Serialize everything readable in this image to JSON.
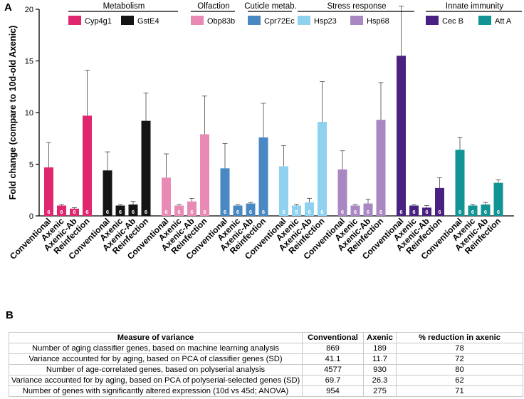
{
  "panel_a_letter": "A",
  "panel_b_letter": "B",
  "chart_data": {
    "type": "bar",
    "ylabel": "Fold change (compare to 10d-old Axenic)",
    "xlabel": "",
    "ylim": [
      0,
      20
    ],
    "yticks": [
      0,
      5,
      10,
      15,
      20
    ],
    "category_groups": [
      {
        "name": "Metabolism",
        "genes": [
          "Cyp4g1",
          "GstE4"
        ]
      },
      {
        "name": "Olfaction",
        "genes": [
          "Obp83b"
        ]
      },
      {
        "name": "Cuticle metab.",
        "genes": [
          "Cpr72Ec"
        ]
      },
      {
        "name": "Stress response",
        "genes": [
          "Hsp23",
          "Hsp68"
        ]
      },
      {
        "name": "Innate immunity",
        "genes": [
          "Cec B",
          "Att A"
        ]
      }
    ],
    "conditions": [
      "Conventional",
      "Axenic",
      "Axenic-Ab",
      "Reinfection"
    ],
    "series": [
      {
        "name": "Cyp4g1",
        "color": "#e0266e",
        "values": [
          4.7,
          1.0,
          0.7,
          9.7
        ],
        "errors": [
          2.4,
          0.1,
          0.1,
          4.4
        ],
        "n": [
          "6",
          "6",
          "6",
          "6"
        ]
      },
      {
        "name": "GstE4",
        "color": "#141414",
        "values": [
          4.4,
          1.0,
          1.1,
          9.2
        ],
        "errors": [
          1.8,
          0.1,
          0.3,
          2.7
        ],
        "n": [
          "6",
          "6",
          "6",
          "6"
        ]
      },
      {
        "name": "Obp83b",
        "color": "#e88ab4",
        "values": [
          3.7,
          1.0,
          1.4,
          7.9
        ],
        "errors": [
          2.3,
          0.1,
          0.3,
          3.7
        ],
        "n": [
          "6",
          "6",
          "6",
          "6"
        ]
      },
      {
        "name": "Cpr72Ec",
        "color": "#4a88c4",
        "values": [
          4.6,
          1.0,
          1.2,
          7.6
        ],
        "errors": [
          2.4,
          0.1,
          0.1,
          3.3
        ],
        "n": [
          "6",
          "6",
          "6",
          "6"
        ]
      },
      {
        "name": "Hsp23",
        "color": "#8fd2ef",
        "values": [
          4.8,
          1.0,
          1.3,
          9.1
        ],
        "errors": [
          2.0,
          0.1,
          0.4,
          3.9
        ],
        "n": [
          "5",
          "5",
          "6",
          "6"
        ]
      },
      {
        "name": "Hsp68",
        "color": "#a987c3",
        "values": [
          4.5,
          1.0,
          1.2,
          9.3
        ],
        "errors": [
          1.8,
          0.1,
          0.4,
          3.6
        ],
        "n": [
          "6",
          "6",
          "6",
          "6"
        ]
      },
      {
        "name": "Cec B",
        "color": "#4a2081",
        "values": [
          15.5,
          1.0,
          0.8,
          2.7
        ],
        "errors": [
          4.8,
          0.1,
          0.2,
          1.0
        ],
        "n": [
          "6",
          "6",
          "6",
          "6"
        ]
      },
      {
        "name": "Att A",
        "color": "#129494",
        "values": [
          6.4,
          1.0,
          1.1,
          3.2
        ],
        "errors": [
          1.2,
          0.1,
          0.2,
          0.3
        ],
        "n": [
          "6",
          "6",
          "6",
          "6"
        ]
      }
    ]
  },
  "variance_table": {
    "headers": [
      "Measure of variance",
      "Conventional",
      "Axenic",
      "% reduction in axenic"
    ],
    "rows": [
      [
        "Number of aging classifier genes, based on machine learning analysis",
        "869",
        "189",
        "78"
      ],
      [
        "Variance accounted for by aging, based on PCA of classifier genes (SD)",
        "41.1",
        "11.7",
        "72"
      ],
      [
        "Number of age-correlated genes, based on polyserial analysis",
        "4577",
        "930",
        "80"
      ],
      [
        "Variance accounted for by aging, based on PCA of polyserial-selected genes (SD)",
        "69.7",
        "26.3",
        "62"
      ],
      [
        "Number of genes with significantly altered expression (10d vs 45d; ANOVA)",
        "954",
        "275",
        "71"
      ]
    ]
  }
}
